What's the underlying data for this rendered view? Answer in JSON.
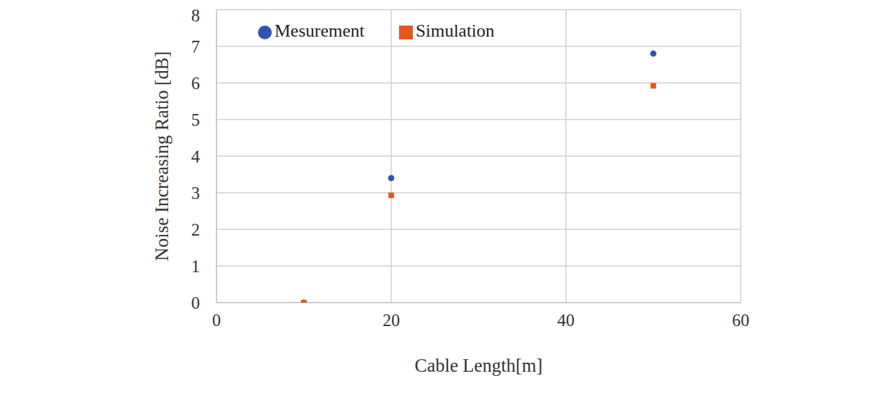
{
  "chart_data": {
    "type": "scatter",
    "x_label": "Cable Length[m]",
    "y_label": "Noise Increasing Ratio [dB]",
    "x": [
      10,
      20,
      50
    ],
    "series": [
      {
        "name": "Mesurement",
        "color": "#2f55b0",
        "marker": "circle",
        "values": [
          0,
          3.4,
          6.8
        ]
      },
      {
        "name": "Simulation",
        "color": "#e4581e",
        "marker": "square",
        "values": [
          0,
          2.93,
          5.92
        ]
      }
    ],
    "xlim": [
      0,
      60
    ],
    "xticks": [
      0,
      20,
      40,
      60
    ],
    "ylim": [
      0,
      8
    ],
    "yticks": [
      0,
      1,
      2,
      3,
      4,
      5,
      6,
      7,
      8
    ],
    "grid": true,
    "legend": "upper left"
  }
}
